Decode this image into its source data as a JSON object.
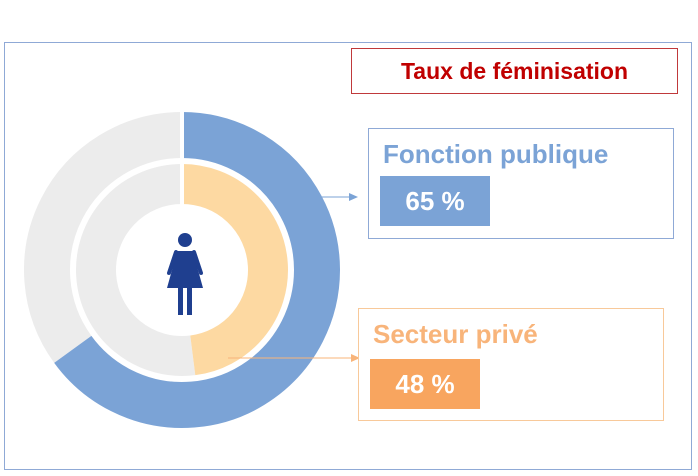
{
  "chart_data": {
    "type": "donut",
    "title": "Taux de féminisation",
    "unit": "%",
    "series": [
      {
        "name": "Fonction publique",
        "value": 65,
        "label": "65 %",
        "ring": "outer",
        "color": "#7ba3d6"
      },
      {
        "name": "Secteur privé",
        "value": 48,
        "label": "48 %",
        "ring": "inner",
        "color": "#fdd9a2"
      }
    ],
    "remainder_color": "#ececec",
    "center_icon": "woman-icon",
    "icon_color": "#1f3f8f",
    "label_colors": {
      "Fonction publique": "#7ba3d6",
      "Secteur privé": "#f8b47a"
    },
    "legend_placement": "right"
  }
}
